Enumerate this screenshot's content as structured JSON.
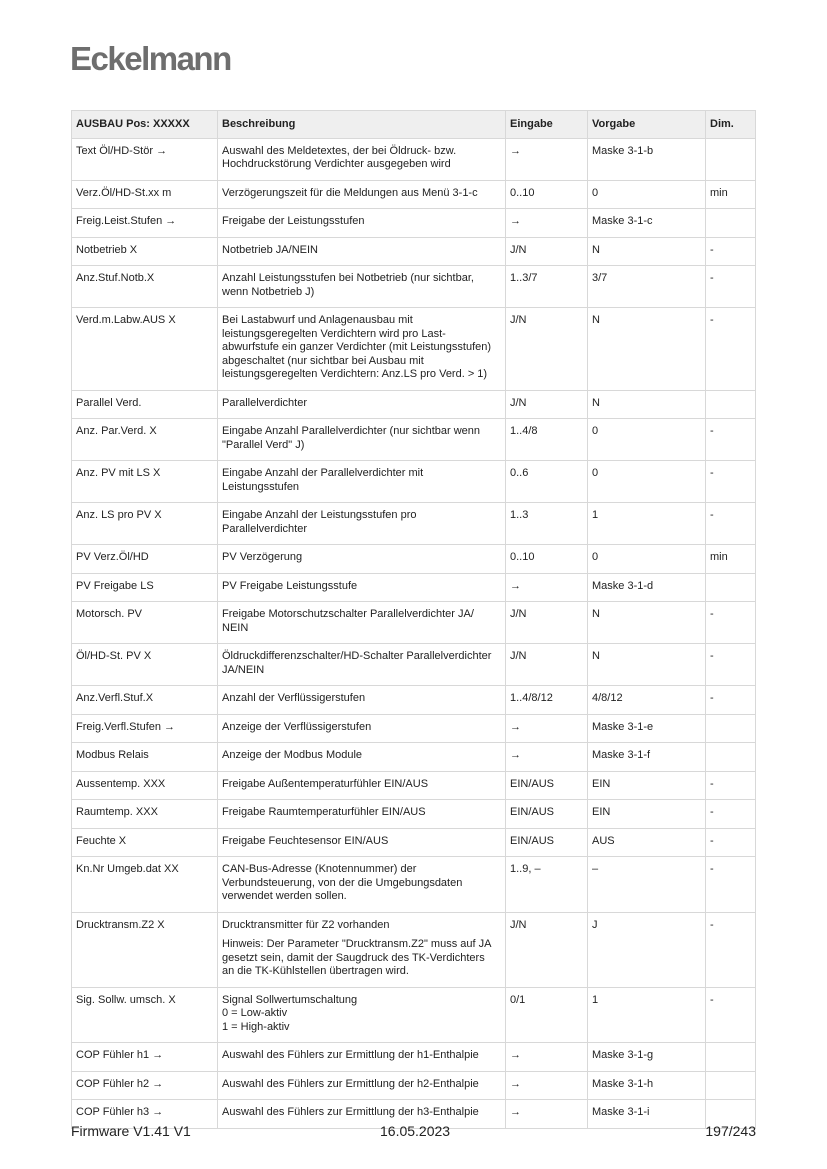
{
  "logo": "Eckelmann",
  "table": {
    "headers": [
      "AUSBAU Pos: XXXXX",
      "Beschreibung",
      "Eingabe",
      "Vorgabe",
      "Dim."
    ],
    "rows": [
      {
        "param": "Text Öl/HD-Stör →",
        "desc": "Auswahl des Meldetextes, der bei Öldruck- bzw.\nHochdruckstörung Verdichter ausgegeben wird",
        "input": "→",
        "default": "Maske 3-1-b",
        "dim": ""
      },
      {
        "param": "Verz.Öl/HD-St.xx m",
        "desc": "Verzögerungszeit für die Meldungen aus Menü 3-1-c",
        "input": "0..10",
        "default": "0",
        "dim": "min"
      },
      {
        "param": "Freig.Leist.Stufen →",
        "desc": "Freigabe der Leistungsstufen",
        "input": "→",
        "default": "Maske 3-1-c",
        "dim": ""
      },
      {
        "param": "Notbetrieb X",
        "desc": "Notbetrieb JA/NEIN",
        "input": " J/N",
        "default": "N",
        "dim": "-"
      },
      {
        "param": "Anz.Stuf.Notb.X",
        "desc": "Anzahl Leistungsstufen bei Notbetrieb (nur sichtbar,\nwenn Notbetrieb J)",
        "input": "1..3/7",
        "default": "3/7",
        "dim": "-"
      },
      {
        "param": "Verd.m.Labw.AUS X",
        "desc": "Bei Lastabwurf und Anlagenausbau mit\nleistungsgeregelten Verdichtern wird pro Last-\nabwurfstufe ein ganzer Verdichter (mit Leistungsstufen)\nabgeschaltet (nur sichtbar bei Ausbau mit\nleistungsgeregelten Verdichtern: Anz.LS pro Verd. > 1)",
        "input": " J/N",
        "default": "N",
        "dim": "-"
      },
      {
        "param": "Parallel Verd.",
        "desc": "Parallelverdichter",
        "input": "J/N",
        "default": "N",
        "dim": ""
      },
      {
        "param": "Anz. Par.Verd. X",
        "desc": "Eingabe Anzahl Parallelverdichter (nur sichtbar wenn\n\"Parallel Verd\" J)",
        "input": "1..4/8",
        "default": "0",
        "dim": "-"
      },
      {
        "param": "Anz. PV mit LS X",
        "desc": "Eingabe Anzahl der Parallelverdichter mit\nLeistungsstufen",
        "input": "0..6",
        "default": "0",
        "dim": "-"
      },
      {
        "param": "Anz. LS pro PV X",
        "desc": "Eingabe Anzahl der Leistungsstufen pro\nParallelverdichter",
        "input": "1..3",
        "default": "1",
        "dim": "-"
      },
      {
        "param": "PV Verz.Öl/HD",
        "desc": "PV Verzögerung",
        "input": "0..10",
        "default": "0",
        "dim": "min"
      },
      {
        "param": "PV Freigabe LS",
        "desc": "PV Freigabe Leistungsstufe",
        "input": "→",
        "default": "Maske 3-1-d",
        "dim": ""
      },
      {
        "param": "Motorsch. PV",
        "desc": "Freigabe Motorschutzschalter Parallelverdichter JA/\nNEIN",
        "input": "J/N",
        "default": "N",
        "dim": "-"
      },
      {
        "param": "Öl/HD-St. PV X",
        "desc": "Öldruckdifferenzschalter/HD-Schalter Parallelverdichter\nJA/NEIN",
        "input": "J/N",
        "default": "N",
        "dim": "-"
      },
      {
        "param": "Anz.Verfl.Stuf.X",
        "desc": "Anzahl der Verflüssigerstufen",
        "input": "1..4/8/12",
        "default": "4/8/12",
        "dim": "-"
      },
      {
        "param": "Freig.Verfl.Stufen →",
        "desc": "Anzeige der Verflüssigerstufen",
        "input": "→",
        "default": "Maske 3-1-e",
        "dim": ""
      },
      {
        "param": "Modbus Relais",
        "desc": "Anzeige der Modbus Module",
        "input": "→",
        "default": "Maske 3-1-f",
        "dim": ""
      },
      {
        "param": "Aussentemp. XXX",
        "desc": "Freigabe Außentemperaturfühler EIN/AUS",
        "input": " EIN/AUS",
        "default": "EIN",
        "dim": "-"
      },
      {
        "param": "Raumtemp. XXX",
        "desc": "Freigabe Raumtemperaturfühler EIN/AUS",
        "input": " EIN/AUS",
        "default": "EIN",
        "dim": "-"
      },
      {
        "param": "Feuchte X",
        "desc": "Freigabe Feuchtesensor EIN/AUS",
        "input": " EIN/AUS",
        "default": "AUS",
        "dim": "-"
      },
      {
        "param": "Kn.Nr Umgeb.dat XX",
        "desc": "CAN-Bus-Adresse (Knotennummer) der\nVerbundsteuerung, von der die Umgebungsdaten\nverwendet werden sollen.",
        "input": "1..9, –",
        "default": "–",
        "dim": "-"
      },
      {
        "param": "Drucktransm.Z2 X",
        "desc": "Drucktransmitter für Z2 vorhanden",
        "note": "Hinweis:  Der Parameter \"Drucktransm.Z2\" muss auf JA\ngesetzt sein, damit der Saugdruck des TK-Verdichters\nan die TK-Kühlstellen übertragen wird.",
        "input": " J/N",
        "default": "J",
        "dim": "-"
      },
      {
        "param": "Sig. Sollw. umsch. X",
        "desc": "Signal Sollwertumschaltung\n0 = Low-aktiv\n1 = High-aktiv",
        "input": "0/1",
        "default": "1",
        "dim": "-"
      },
      {
        "param": "COP Fühler h1 →",
        "desc": "Auswahl des Fühlers zur Ermittlung der h1-Enthalpie",
        "input": "→",
        "default": "Maske 3-1-g",
        "dim": ""
      },
      {
        "param": "COP Fühler h2 →",
        "desc": "Auswahl des Fühlers zur Ermittlung der h2-Enthalpie",
        "input": "→",
        "default": "Maske 3-1-h",
        "dim": ""
      },
      {
        "param": "COP Fühler h3 →",
        "desc": "Auswahl des Fühlers zur Ermittlung der h3-Enthalpie",
        "input": "→",
        "default": "Maske 3-1-i",
        "dim": ""
      }
    ]
  },
  "footer": {
    "firmware": "Firmware V1.41 V1",
    "date": "16.05.2023",
    "page": "197/243"
  }
}
